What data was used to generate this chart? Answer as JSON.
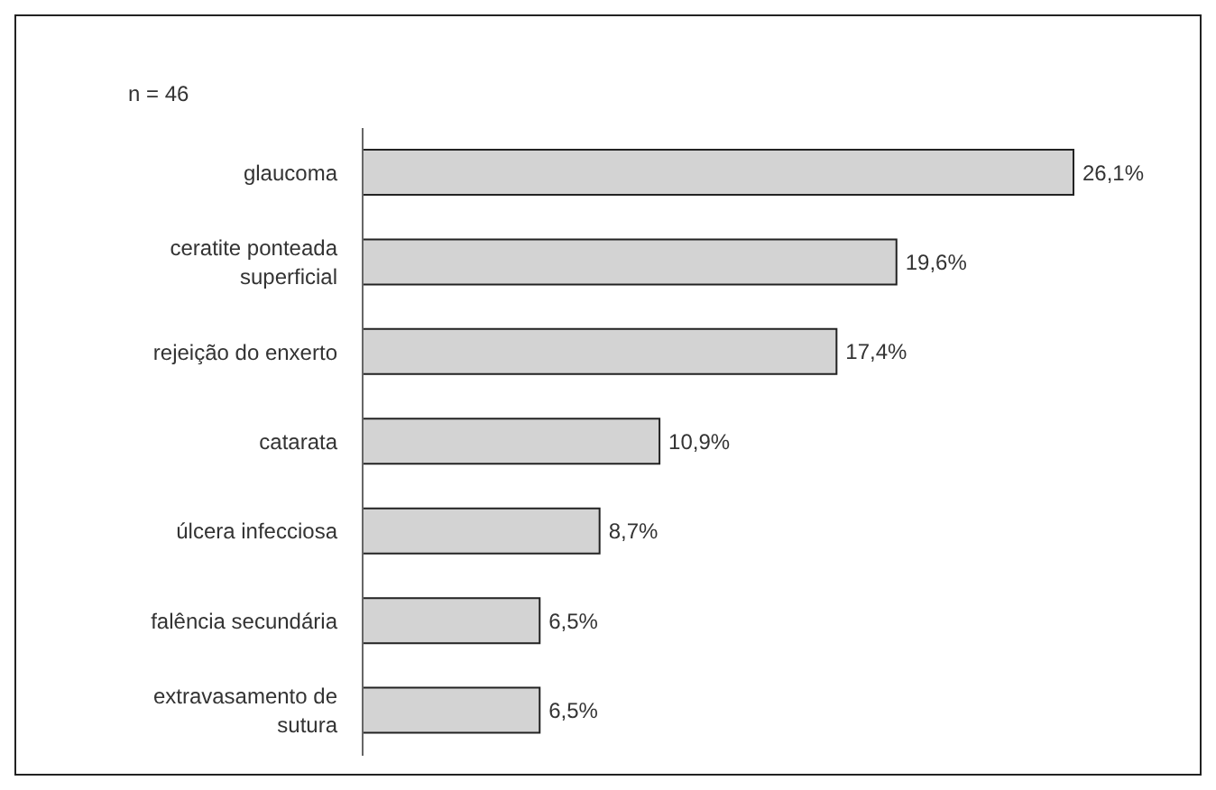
{
  "chart_data": {
    "type": "bar",
    "orientation": "horizontal",
    "categories": [
      "glaucoma",
      "ceratite ponteada superficial",
      "rejeição do enxerto",
      "catarata",
      "úlcera infecciosa",
      "falência secundária",
      "extravasamento de sutura"
    ],
    "values": [
      26.1,
      19.6,
      17.4,
      10.9,
      8.7,
      6.5,
      6.5
    ],
    "value_labels": [
      "26,1%",
      "19,6%",
      "17,4%",
      "10,9%",
      "8,7%",
      "6,5%",
      "6,5%"
    ],
    "color": "#d3d3d3",
    "annotations": [
      "n = 46"
    ]
  }
}
